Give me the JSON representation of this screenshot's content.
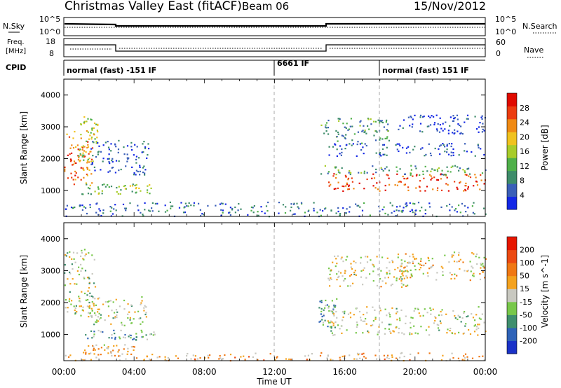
{
  "header": {
    "title": "Christmas Valley East (fitACF)",
    "beam": "Beam 06",
    "date": "15/Nov/2012"
  },
  "nsky_panel": {
    "left_label": "N.Sky",
    "right_label": "N.Search",
    "left_ticks": [
      "10^5",
      "10^0"
    ],
    "right_ticks": [
      "10^5",
      "10^0"
    ],
    "log_scale": true
  },
  "freq_panel": {
    "left_label_1": "Freq.",
    "left_label_2": "[MHz]",
    "right_label": "Nave",
    "left_ticks": [
      "18",
      "8"
    ],
    "right_ticks": [
      "60",
      "0"
    ]
  },
  "cpid": {
    "label": "CPID",
    "segments": [
      {
        "text": "normal (fast) -151 IF",
        "start_hour": 0
      },
      {
        "text": "6661 IF",
        "start_hour": 12
      },
      {
        "text": "normal (fast) 151 IF",
        "start_hour": 18
      }
    ]
  },
  "time_axis": {
    "label": "Time UT",
    "range_hours": [
      0,
      24
    ],
    "tick_labels": [
      "00:00",
      "04:00",
      "08:00",
      "12:00",
      "16:00",
      "20:00",
      "00:00"
    ]
  },
  "chart_data": [
    {
      "type": "heatmap",
      "name": "power",
      "ylabel": "Slant Range [km]",
      "ylim": [
        180,
        4500
      ],
      "yticks": [
        "1000",
        "2000",
        "3000",
        "4000"
      ],
      "colorbar_label": "Power [dB]",
      "colorbar_ticks": [
        "4",
        "8",
        "12",
        "16",
        "20",
        "24",
        "28"
      ],
      "colormap": [
        "#1428e6",
        "#3a5fb8",
        "#3e8c6a",
        "#4fb04a",
        "#a8cc2a",
        "#f0c21e",
        "#f08a14",
        "#ec3c10",
        "#e00a00"
      ],
      "dashed_lines_hours": [
        12,
        18
      ],
      "regions": [
        {
          "t": [
            0.0,
            1.6
          ],
          "r": [
            1200,
            2900
          ],
          "level": 0.75
        },
        {
          "t": [
            0.8,
            1.9
          ],
          "r": [
            1900,
            3400
          ],
          "level": 0.5
        },
        {
          "t": [
            1.5,
            4.8
          ],
          "r": [
            1500,
            2600
          ],
          "level": 0.15
        },
        {
          "t": [
            1.0,
            5.2
          ],
          "r": [
            900,
            1250
          ],
          "level": 0.45
        },
        {
          "t": [
            0.0,
            24.0
          ],
          "r": [
            200,
            650
          ],
          "level": 0.2
        },
        {
          "t": [
            14.9,
            24.0
          ],
          "r": [
            1000,
            1550
          ],
          "level": 0.85
        },
        {
          "t": [
            14.6,
            24.0
          ],
          "r": [
            1500,
            1800
          ],
          "level": 0.35
        },
        {
          "t": [
            15.0,
            24.0
          ],
          "r": [
            2100,
            2500
          ],
          "level": 0.12
        },
        {
          "t": [
            14.5,
            18.5
          ],
          "r": [
            2500,
            3300
          ],
          "level": 0.3
        },
        {
          "t": [
            19.0,
            24.0
          ],
          "r": [
            2800,
            3400
          ],
          "level": 0.1
        }
      ]
    },
    {
      "type": "heatmap",
      "name": "velocity",
      "ylabel": "Slant Range [km]",
      "ylim": [
        180,
        4500
      ],
      "yticks": [
        "1000",
        "2000",
        "3000",
        "4000"
      ],
      "colorbar_label": "Velocity [m s^-1]",
      "colorbar_ticks": [
        "200",
        "100",
        "50",
        "15",
        "-15",
        "-50",
        "-100",
        "-200"
      ],
      "colormap": [
        "#1a32c8",
        "#2f63b8",
        "#3f8f6e",
        "#78c84a",
        "#c8c8c0",
        "#f4a21e",
        "#f07814",
        "#ec4a12",
        "#e61600"
      ],
      "dashed_lines_hours": [
        12,
        18
      ],
      "regions": [
        {
          "t": [
            0.0,
            1.8
          ],
          "r": [
            1500,
            3700
          ],
          "level": 0.45
        },
        {
          "t": [
            1.3,
            4.8
          ],
          "r": [
            1300,
            2200
          ],
          "level": 0.45
        },
        {
          "t": [
            1.0,
            5.2
          ],
          "r": [
            850,
            1150
          ],
          "level": 0.35
        },
        {
          "t": [
            1.0,
            4.0
          ],
          "r": [
            350,
            700
          ],
          "level": 0.6
        },
        {
          "t": [
            0.0,
            24.0
          ],
          "r": [
            200,
            450
          ],
          "level": 0.62
        },
        {
          "t": [
            14.5,
            15.5
          ],
          "r": [
            1200,
            2200
          ],
          "level": 0.3
        },
        {
          "t": [
            15.0,
            24.0
          ],
          "r": [
            1000,
            1900
          ],
          "level": 0.48
        },
        {
          "t": [
            15.0,
            20.0
          ],
          "r": [
            2500,
            3500
          ],
          "level": 0.5
        },
        {
          "t": [
            19.0,
            24.0
          ],
          "r": [
            2700,
            3600
          ],
          "level": 0.55
        }
      ]
    }
  ]
}
